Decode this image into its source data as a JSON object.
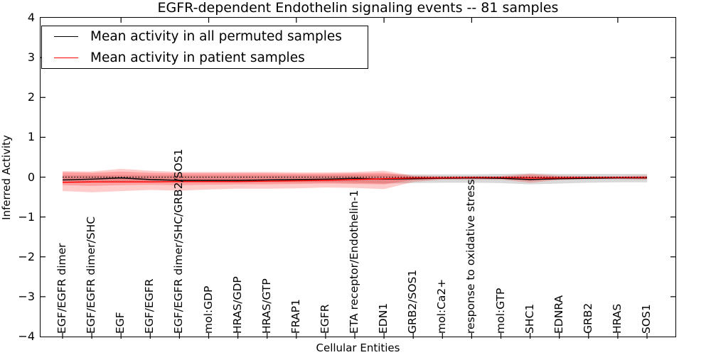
{
  "title": "EGFR-dependent Endothelin signaling events -- 81 samples",
  "legend": {
    "items": [
      {
        "label": "Mean activity in all permuted samples",
        "color": "#000000"
      },
      {
        "label": "Mean activity in patient samples",
        "color": "#ff0000"
      }
    ]
  },
  "axes": {
    "ylabel": "Inferred Activity",
    "xlabel": "Cellular Entities",
    "yticks": [
      "4",
      "3",
      "2",
      "1",
      "0",
      "−1",
      "−2",
      "−3",
      "−4"
    ]
  },
  "chart_data": {
    "type": "line",
    "title": "EGFR-dependent Endothelin signaling events -- 81 samples",
    "xlabel": "Cellular Entities",
    "ylabel": "Inferred Activity",
    "ylim": [
      -4,
      4
    ],
    "grid": false,
    "legend_position": "upper left",
    "zero_line": 0,
    "categories": [
      "EGF/EGFR dimer",
      "EGF/EGFR dimer/SHC",
      "EGF",
      "EGF/EGFR",
      "EGF/EGFR dimer/SHC/GRB2/SOS1",
      "mol:GDP",
      "HRAS/GDP",
      "HRAS/GTP",
      "FRAP1",
      "EGFR",
      "ETA receptor/Endothelin-1",
      "EDN1",
      "GRB2/SOS1",
      "mol:Ca2+",
      "response to oxidative stress",
      "mol:GTP",
      "SHC1",
      "EDNRA",
      "GRB2",
      "HRAS",
      "SOS1"
    ],
    "series": [
      {
        "name": "Mean activity in all permuted samples",
        "color": "#000000",
        "values": [
          -0.07,
          -0.05,
          -0.02,
          -0.06,
          -0.08,
          -0.08,
          -0.08,
          -0.07,
          -0.06,
          -0.05,
          -0.03,
          -0.05,
          -0.04,
          -0.03,
          -0.02,
          -0.03,
          -0.06,
          -0.04,
          -0.03,
          -0.02,
          -0.02
        ]
      },
      {
        "name": "Mean activity in patient samples",
        "color": "#ff0000",
        "values": [
          -0.13,
          -0.12,
          -0.12,
          -0.12,
          -0.11,
          -0.11,
          -0.11,
          -0.1,
          -0.09,
          -0.08,
          -0.06,
          -0.04,
          -0.02,
          -0.02,
          -0.01,
          -0.01,
          -0.02,
          -0.02,
          -0.01,
          -0.01,
          -0.01
        ]
      }
    ],
    "bands": [
      {
        "name": "permuted-samples-range",
        "color": "#808080",
        "opacity": 0.3,
        "upper": [
          0.05,
          0.05,
          0.05,
          0.05,
          0.05,
          0.05,
          0.05,
          0.05,
          0.05,
          0.05,
          0.06,
          0.07,
          0.07,
          0.07,
          0.07,
          0.08,
          0.09,
          0.08,
          0.08,
          0.08,
          0.08
        ],
        "lower": [
          -0.13,
          -0.13,
          -0.13,
          -0.13,
          -0.13,
          -0.13,
          -0.13,
          -0.13,
          -0.13,
          -0.13,
          -0.14,
          -0.16,
          -0.15,
          -0.14,
          -0.14,
          -0.15,
          -0.18,
          -0.16,
          -0.14,
          -0.13,
          -0.13
        ]
      },
      {
        "name": "patient-samples-range-outer",
        "color": "#ff0000",
        "opacity": 0.2,
        "upper": [
          0.15,
          0.14,
          0.21,
          0.16,
          0.13,
          0.13,
          0.13,
          0.13,
          0.12,
          0.12,
          0.13,
          0.16,
          0.04,
          0.03,
          0.03,
          0.03,
          0.09,
          0.04,
          0.03,
          0.03,
          0.04
        ],
        "lower": [
          -0.35,
          -0.38,
          -0.35,
          -0.32,
          -0.34,
          -0.31,
          -0.29,
          -0.29,
          -0.28,
          -0.26,
          -0.27,
          -0.3,
          -0.12,
          -0.06,
          -0.06,
          -0.06,
          -0.14,
          -0.07,
          -0.05,
          -0.05,
          -0.06
        ]
      },
      {
        "name": "patient-samples-range-inner",
        "color": "#ff0000",
        "opacity": 0.22,
        "upper": [
          0.12,
          0.11,
          0.14,
          0.11,
          0.1,
          0.1,
          0.1,
          0.1,
          0.09,
          0.09,
          0.1,
          0.11,
          0.02,
          0.01,
          0.01,
          0.01,
          0.05,
          0.02,
          0.01,
          0.01,
          0.02
        ],
        "lower": [
          -0.2,
          -0.22,
          -0.2,
          -0.19,
          -0.2,
          -0.19,
          -0.18,
          -0.18,
          -0.17,
          -0.16,
          -0.17,
          -0.18,
          -0.07,
          -0.04,
          -0.04,
          -0.04,
          -0.09,
          -0.05,
          -0.03,
          -0.03,
          -0.04
        ]
      }
    ],
    "top_ticks_at": [
      2,
      5,
      8,
      11,
      14,
      19
    ]
  }
}
